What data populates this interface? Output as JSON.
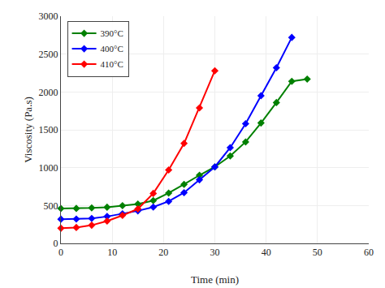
{
  "chart_data": {
    "type": "line",
    "xlabel": "Time (min)",
    "ylabel": "Viscosity (Pa.s)",
    "xlim": [
      0,
      60
    ],
    "ylim": [
      0,
      3000
    ],
    "xticks": [
      0,
      10,
      20,
      30,
      40,
      50,
      60
    ],
    "yticks": [
      0,
      500,
      1000,
      1500,
      2000,
      2500,
      3000
    ],
    "grid": true,
    "legend": "upper left",
    "marker": "diamond",
    "series": [
      {
        "name": "390°C",
        "color": "#008000",
        "x": [
          0,
          3,
          6,
          9,
          12,
          15,
          18,
          21,
          24,
          27,
          30,
          33,
          36,
          39,
          42,
          45,
          48
        ],
        "values": [
          460,
          462,
          468,
          478,
          498,
          520,
          565,
          665,
          780,
          900,
          1010,
          1155,
          1340,
          1590,
          1860,
          2140,
          2170
        ]
      },
      {
        "name": "400°C",
        "color": "#0000ff",
        "x": [
          0,
          3,
          6,
          9,
          12,
          15,
          18,
          21,
          24,
          27,
          30,
          33,
          36,
          39,
          42,
          45
        ],
        "values": [
          320,
          322,
          330,
          355,
          390,
          430,
          480,
          555,
          670,
          840,
          1010,
          1265,
          1580,
          1950,
          2320,
          2720
        ]
      },
      {
        "name": "410°C",
        "color": "#ff0000",
        "x": [
          0,
          3,
          6,
          9,
          12,
          15,
          18,
          21,
          24,
          27,
          30
        ],
        "values": [
          200,
          210,
          240,
          295,
          370,
          455,
          660,
          970,
          1320,
          1790,
          2280
        ]
      }
    ]
  }
}
